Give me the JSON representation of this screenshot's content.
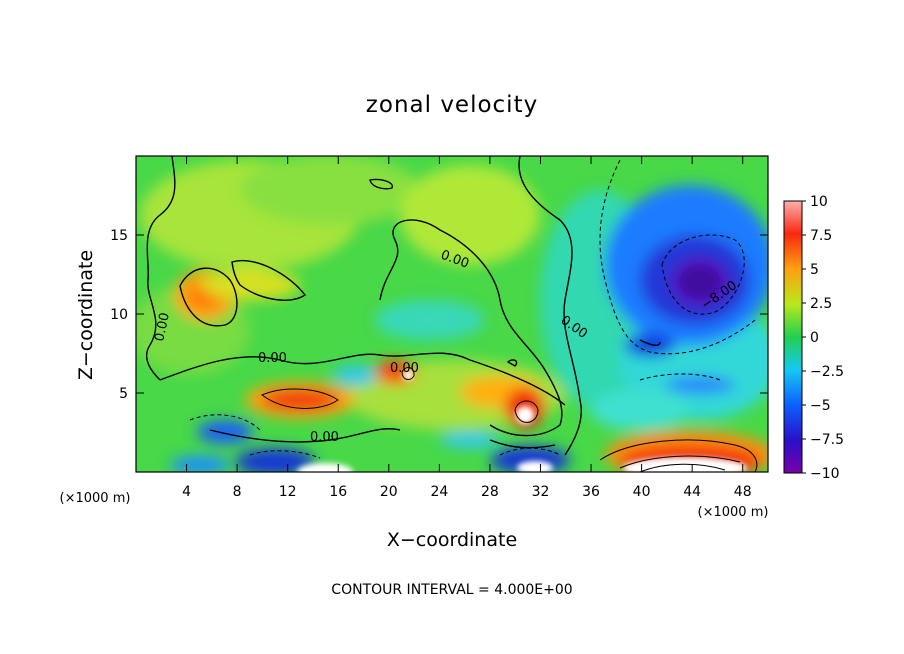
{
  "chart_data": {
    "type": "heatmap",
    "title": "zonal velocity",
    "xlabel": "X−coordinate",
    "ylabel": "Z−coordinate",
    "x_unit": "(×1000 m)",
    "z_unit": "(×1000 m)",
    "xlim": [
      0,
      50
    ],
    "ylim": [
      0,
      20
    ],
    "xticks": [
      "4",
      "8",
      "12",
      "16",
      "20",
      "24",
      "28",
      "32",
      "36",
      "40",
      "44",
      "48"
    ],
    "yticks": [
      "5",
      "10",
      "15"
    ],
    "colorbar": {
      "range": [
        -10,
        10
      ],
      "labels": [
        "10",
        "7.5",
        "5",
        "2.5",
        "0",
        "−2.5",
        "−5",
        "−7.5",
        "−10"
      ]
    },
    "contour_labels": [
      "0.00",
      "0.00",
      "0.00",
      "0.00",
      "0.00",
      "0.00",
      "−8.00"
    ],
    "footer": "CONTOUR INTERVAL = 4.000E+00",
    "features": [
      {
        "x": 6,
        "z": 11.5,
        "u": 6
      },
      {
        "x": 14,
        "z": 4.7,
        "u": 7
      },
      {
        "x": 21,
        "z": 6.3,
        "u": 8
      },
      {
        "x": 31,
        "z": 3.8,
        "u": 10
      },
      {
        "x": 44,
        "z": 1.0,
        "u": 10
      },
      {
        "x": 45,
        "z": 12.0,
        "u": -9
      },
      {
        "x": 13,
        "z": 0.6,
        "u": -10
      },
      {
        "x": 31,
        "z": 0.8,
        "u": -10
      },
      {
        "x": 8,
        "z": 13.5,
        "u": 3
      },
      {
        "x": 24,
        "z": 15,
        "u": 1
      },
      {
        "x": 40,
        "z": 8.5,
        "u": -5
      }
    ]
  }
}
